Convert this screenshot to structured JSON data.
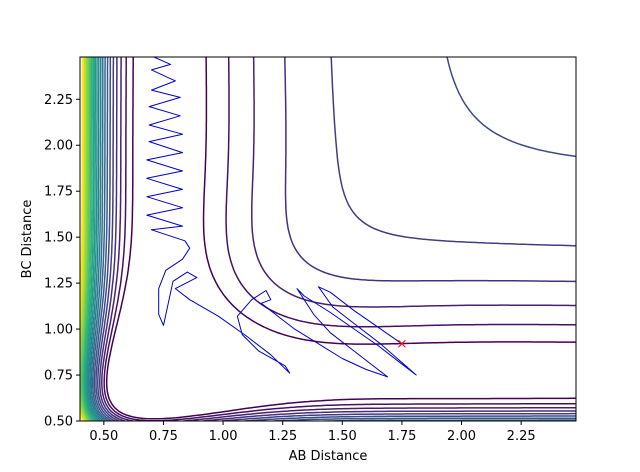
{
  "chart_data": {
    "type": "contour",
    "title": "",
    "xlabel": "AB Distance",
    "ylabel": "BC Distance",
    "xlim": [
      0.4,
      2.48
    ],
    "ylim": [
      0.5,
      2.48
    ],
    "x_ticks": [
      0.5,
      0.75,
      1.0,
      1.25,
      1.5,
      1.75,
      2.0,
      2.25
    ],
    "x_tick_labels": [
      "0.50",
      "0.75",
      "1.00",
      "1.25",
      "1.50",
      "1.75",
      "2.00",
      "2.25"
    ],
    "y_ticks": [
      0.5,
      0.75,
      1.0,
      1.25,
      1.5,
      1.75,
      2.0,
      2.25
    ],
    "y_tick_labels": [
      "0.50",
      "0.75",
      "1.00",
      "1.25",
      "1.50",
      "1.75",
      "2.00",
      "2.25"
    ],
    "grid": false,
    "legend": false,
    "colormap": "viridis",
    "colors": {
      "trajectory": "#0000cc",
      "end_marker": "#ff0000",
      "viridis": [
        "#440154",
        "#482878",
        "#3e4989",
        "#31688e",
        "#26828e",
        "#1f9e89",
        "#35b779",
        "#6ece58",
        "#b5de2b",
        "#fde725"
      ]
    },
    "series": [
      {
        "points": [
          [
            0.71,
            2.48
          ],
          [
            0.78,
            2.44
          ],
          [
            0.7,
            2.41
          ],
          [
            0.8,
            2.35
          ],
          [
            0.7,
            2.3
          ],
          [
            0.82,
            2.26
          ],
          [
            0.69,
            2.21
          ],
          [
            0.82,
            2.16
          ],
          [
            0.69,
            2.11
          ],
          [
            0.83,
            2.06
          ],
          [
            0.69,
            2.02
          ],
          [
            0.83,
            1.96
          ],
          [
            0.68,
            1.92
          ],
          [
            0.83,
            1.86
          ],
          [
            0.68,
            1.82
          ],
          [
            0.83,
            1.76
          ],
          [
            0.68,
            1.72
          ],
          [
            0.83,
            1.66
          ],
          [
            0.68,
            1.62
          ],
          [
            0.83,
            1.56
          ],
          [
            0.7,
            1.54
          ],
          [
            0.84,
            1.48
          ],
          [
            0.86,
            1.44
          ],
          [
            0.83,
            1.38
          ],
          [
            0.76,
            1.32
          ],
          [
            0.73,
            1.22
          ],
          [
            0.73,
            1.08
          ],
          [
            0.75,
            1.02
          ],
          [
            0.79,
            1.26
          ],
          [
            0.85,
            1.31
          ],
          [
            0.89,
            1.28
          ],
          [
            0.8,
            1.22
          ],
          [
            0.86,
            1.16
          ],
          [
            0.98,
            1.07
          ],
          [
            1.1,
            0.96
          ],
          [
            1.2,
            0.86
          ],
          [
            1.28,
            0.76
          ],
          [
            1.26,
            0.8
          ],
          [
            1.15,
            0.88
          ],
          [
            1.08,
            0.97
          ],
          [
            1.06,
            1.07
          ],
          [
            1.12,
            1.16
          ],
          [
            1.18,
            1.21
          ],
          [
            1.2,
            1.16
          ],
          [
            1.16,
            1.14
          ],
          [
            1.22,
            1.08
          ],
          [
            1.3,
            1.0
          ],
          [
            1.4,
            0.92
          ],
          [
            1.5,
            0.84
          ],
          [
            1.6,
            0.78
          ],
          [
            1.69,
            0.74
          ],
          [
            1.55,
            0.88
          ],
          [
            1.45,
            0.98
          ],
          [
            1.38,
            1.08
          ],
          [
            1.31,
            1.22
          ],
          [
            1.34,
            1.18
          ],
          [
            1.45,
            1.09
          ],
          [
            1.55,
            1.0
          ],
          [
            1.65,
            0.91
          ],
          [
            1.74,
            0.82
          ],
          [
            1.81,
            0.75
          ],
          [
            1.66,
            0.92
          ],
          [
            1.55,
            1.03
          ],
          [
            1.46,
            1.12
          ],
          [
            1.4,
            1.23
          ],
          [
            1.45,
            1.2
          ],
          [
            1.55,
            1.1
          ],
          [
            1.65,
            1.01
          ],
          [
            1.75,
            0.92
          ]
        ]
      }
    ],
    "end_marker": [
      1.75,
      0.92
    ],
    "contour_levels": [
      -0.8,
      -0.65,
      -0.5,
      -0.35,
      -0.2,
      -0.05,
      0.1,
      0.25,
      0.4,
      0.55,
      0.7,
      0.85,
      1.0,
      1.15,
      1.3,
      1.45,
      1.6,
      1.75,
      1.9,
      2.05,
      2.2,
      2.35,
      2.5
    ]
  }
}
